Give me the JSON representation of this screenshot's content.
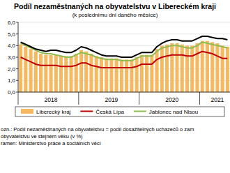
{
  "chart_data": {
    "type": "bar",
    "title": "Podíl nezaměstnaných na obyvatelstvu v Libereckém kraji",
    "subtitle": "(k poslednímu dni daného měsíce)",
    "annotations": [
      "ozn.: Podíl nezaměstnaných na obyvatelstvu = podíl dosažitelných uchazečů o zam",
      "obyvatelstvu ve stejném věku (v %)",
      "ramen: Ministerstvo práce a sociálních věcí"
    ],
    "categories": [
      null,
      null,
      null,
      null,
      null,
      null,
      "2018",
      null,
      null,
      null,
      null,
      null,
      null,
      null,
      null,
      null,
      null,
      null,
      "2019",
      null,
      null,
      null,
      null,
      null,
      null,
      null,
      null,
      null,
      null,
      null,
      "2020",
      null,
      null,
      null,
      null,
      null,
      null,
      null,
      null,
      "2021",
      null,
      null
    ],
    "series": [
      {
        "name": "Liberecký kraj",
        "type": "bar",
        "color": "#f5b961",
        "values": [
          4.1,
          3.9,
          3.7,
          3.5,
          3.3,
          3.2,
          3.2,
          3.2,
          3.1,
          3.1,
          3.1,
          3.3,
          3.6,
          3.5,
          3.3,
          3.1,
          3.0,
          2.9,
          2.9,
          2.9,
          2.8,
          2.8,
          2.8,
          3.0,
          3.2,
          3.2,
          3.2,
          3.7,
          4.0,
          4.1,
          4.2,
          4.2,
          4.1,
          4.0,
          4.0,
          4.2,
          4.4,
          4.4,
          4.3,
          4.2,
          4.0,
          3.9
        ]
      },
      {
        "name": "Česká Lípa",
        "type": "line",
        "color": "#c00000",
        "values": [
          3.0,
          2.8,
          2.6,
          2.4,
          2.3,
          2.3,
          2.3,
          2.3,
          2.2,
          2.2,
          2.2,
          2.3,
          2.5,
          2.5,
          2.3,
          2.2,
          2.1,
          2.1,
          2.1,
          2.1,
          2.1,
          2.1,
          2.1,
          2.2,
          2.4,
          2.4,
          2.4,
          2.8,
          3.0,
          3.1,
          3.2,
          3.2,
          3.2,
          3.1,
          3.1,
          3.3,
          3.5,
          3.4,
          3.3,
          3.1,
          2.9,
          2.9
        ]
      },
      {
        "name": "Jablonec nad Nisou",
        "type": "line",
        "color": "#8fbc4f",
        "values": [
          4.2,
          4.0,
          3.8,
          3.6,
          3.4,
          3.3,
          3.3,
          3.2,
          3.1,
          3.0,
          3.0,
          3.2,
          3.4,
          3.3,
          3.2,
          3.0,
          2.9,
          2.8,
          2.8,
          2.8,
          2.7,
          2.7,
          2.7,
          2.9,
          3.1,
          3.1,
          3.1,
          3.5,
          3.8,
          3.9,
          4.0,
          4.0,
          3.9,
          3.8,
          3.8,
          4.0,
          4.3,
          4.2,
          4.1,
          4.0,
          3.9,
          3.8
        ]
      },
      {
        "type": "line",
        "color": "#000000",
        "values": [
          4.3,
          4.1,
          3.9,
          3.7,
          3.6,
          3.5,
          3.6,
          3.6,
          3.5,
          3.4,
          3.4,
          3.6,
          3.9,
          3.8,
          3.6,
          3.4,
          3.2,
          3.1,
          3.1,
          3.1,
          3.0,
          3.0,
          3.0,
          3.2,
          3.4,
          3.4,
          3.4,
          3.9,
          4.2,
          4.4,
          4.5,
          4.5,
          4.4,
          4.4,
          4.4,
          4.6,
          4.8,
          4.8,
          4.7,
          4.6,
          4.6,
          4.5
        ]
      }
    ],
    "ylim": [
      0,
      6
    ],
    "yticks": [
      {
        "value": 0,
        "label": "0,0"
      },
      {
        "value": 1,
        "label": "1,0"
      },
      {
        "value": 2,
        "label": "2,0"
      },
      {
        "value": 3,
        "label": "3,0"
      },
      {
        "value": 4,
        "label": "4,0"
      },
      {
        "value": 5,
        "label": "5,0"
      },
      {
        "value": 6,
        "label": "6,0"
      }
    ],
    "grid": true,
    "legend": "bottom"
  }
}
